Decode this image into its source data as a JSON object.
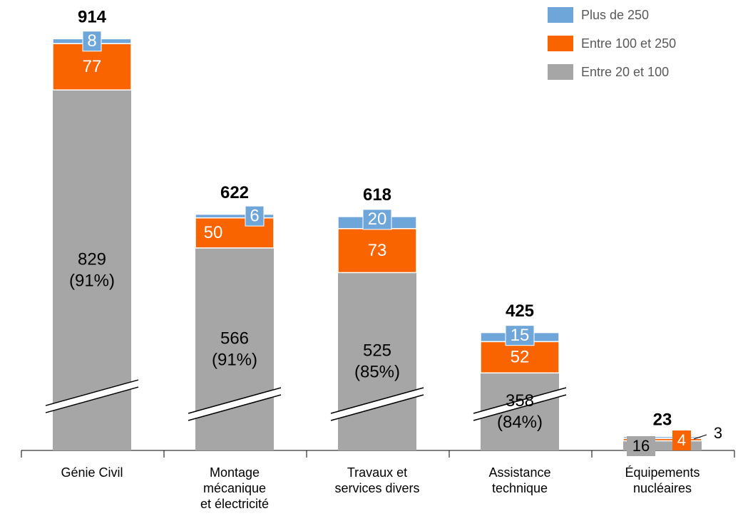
{
  "chart_data": {
    "type": "stacked-bar",
    "categories": [
      [
        "Génie Civil"
      ],
      [
        "Montage",
        "mécanique",
        "et électricité"
      ],
      [
        "Travaux et",
        "services divers"
      ],
      [
        "Assistance",
        "technique"
      ],
      [
        "Équipements",
        "nucléaires"
      ]
    ],
    "series": [
      {
        "name": "Entre 20 et 100",
        "color": "#a6a6a6",
        "values": [
          829,
          566,
          525,
          358,
          16
        ],
        "value_labels": [
          [
            "829",
            "(91%)"
          ],
          [
            "566",
            "(91%)"
          ],
          [
            "525",
            "(85%)"
          ],
          [
            "358",
            "(84%)"
          ],
          [
            "16"
          ]
        ]
      },
      {
        "name": "Entre 100 et 250",
        "color": "#fa6400",
        "values": [
          77,
          50,
          73,
          52,
          4
        ]
      },
      {
        "name": "Plus de 250",
        "color": "#6ea6d9",
        "values": [
          8,
          6,
          20,
          15,
          3
        ]
      }
    ],
    "totals": [
      914,
      622,
      618,
      425,
      23
    ],
    "axis_break": true,
    "legend": "top-right"
  }
}
